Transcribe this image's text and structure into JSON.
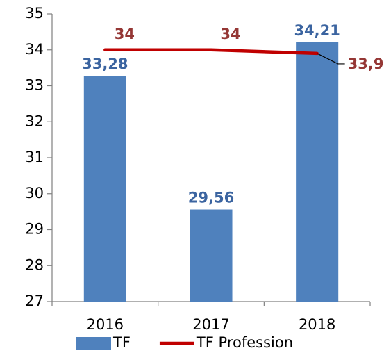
{
  "chart_data": {
    "type": "bar",
    "categories": [
      "2016",
      "2017",
      "2018"
    ],
    "series": [
      {
        "name": "TF",
        "type": "bar",
        "color": "#4f81bd",
        "label_color": "#3b64a0",
        "values": [
          33.28,
          29.56,
          34.21
        ],
        "value_labels": [
          "33,28",
          "29,56",
          "34,21"
        ]
      },
      {
        "name": "TF Profession",
        "type": "line",
        "color": "#c00000",
        "label_color": "#953735",
        "values": [
          34,
          34,
          33.9
        ],
        "value_labels": [
          "34",
          "34",
          "33,9"
        ]
      }
    ],
    "ylim": [
      27,
      35
    ],
    "yticks": [
      27,
      28,
      29,
      30,
      31,
      32,
      33,
      34,
      35
    ],
    "grid": false,
    "legend": "bottom"
  }
}
